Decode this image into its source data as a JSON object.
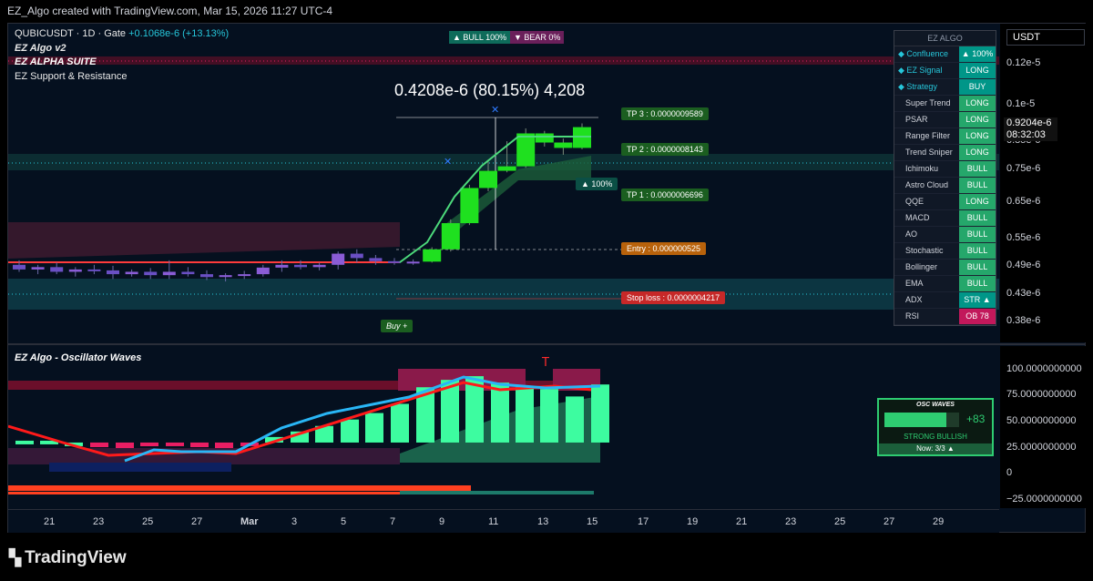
{
  "header": {
    "title": "EZ_Algo created with TradingView.com, Mar 15, 2026 11:27 UTC-4"
  },
  "symbol": {
    "name": "QUBICUSDT · 1D · Gate",
    "change": "+0.1068e-6 (+13.13%)"
  },
  "indicators": {
    "ind1": "EZ Algo v2",
    "ind2": "EZ ALPHA SUITE",
    "ind3": "EZ Support & Resistance",
    "osc_title": "EZ Algo - Oscillator Waves"
  },
  "badges": {
    "bull": "▲ BULL  100%",
    "bear": "▼ BEAR  0%"
  },
  "move_label": "0.4208e-6 (80.15%) 4,208",
  "targets": {
    "tp3": "TP 3 : 0.0000009589",
    "tp2": "TP 2 : 0.0000008143",
    "tp1": "TP 1 : 0.0000006696",
    "entry": "Entry : 0.000000525",
    "stop": "Stop loss : 0.0000004217",
    "pct": "▲ 100%",
    "buy": "Buy +",
    "t_marker": "T"
  },
  "table": {
    "title": "EZ ALGO",
    "rows": [
      {
        "k": "◆ Confluence",
        "v": "▲ 100%",
        "kind": "t",
        "g": true
      },
      {
        "k": "◆ EZ Signal",
        "v": "LONG",
        "kind": "t",
        "g": true
      },
      {
        "k": "◆ Strategy",
        "v": "BUY",
        "kind": "t",
        "g": true
      },
      {
        "k": "Super Trend",
        "v": "LONG",
        "kind": "g"
      },
      {
        "k": "PSAR",
        "v": "LONG",
        "kind": "g"
      },
      {
        "k": "Range Filter",
        "v": "LONG",
        "kind": "g"
      },
      {
        "k": "Trend Sniper",
        "v": "LONG",
        "kind": "g"
      },
      {
        "k": "Ichimoku",
        "v": "BULL",
        "kind": "g"
      },
      {
        "k": "Astro Cloud",
        "v": "BULL",
        "kind": "g"
      },
      {
        "k": "QQE",
        "v": "LONG",
        "kind": "g"
      },
      {
        "k": "MACD",
        "v": "BULL",
        "kind": "g"
      },
      {
        "k": "AO",
        "v": "BULL",
        "kind": "g"
      },
      {
        "k": "Stochastic",
        "v": "BULL",
        "kind": "g"
      },
      {
        "k": "Bollinger",
        "v": "BULL",
        "kind": "g"
      },
      {
        "k": "EMA",
        "v": "BULL",
        "kind": "g"
      },
      {
        "k": "ADX",
        "v": "STR ▲",
        "kind": "t"
      },
      {
        "k": "RSI",
        "v": "OB 78",
        "kind": "p"
      }
    ]
  },
  "price_axis": {
    "currency": "USDT",
    "labels": [
      "0.12e-5",
      "0.1e-5",
      "0.85e-6",
      "0.75e-6",
      "0.65e-6",
      "0.55e-6",
      "0.49e-6",
      "0.43e-6",
      "0.38e-6"
    ],
    "last_price": "0.9204e-6",
    "countdown": "08:32:03"
  },
  "osc_axis": {
    "labels": [
      "100.0000000000",
      "75.0000000000",
      "50.0000000000",
      "25.0000000000",
      "0",
      "−25.0000000000"
    ]
  },
  "x_axis": {
    "labels": [
      "21",
      "23",
      "25",
      "27",
      "Mar",
      "3",
      "5",
      "7",
      "9",
      "11",
      "13",
      "15",
      "17",
      "19",
      "21",
      "23",
      "25",
      "27",
      "29"
    ]
  },
  "osc_panel": {
    "title": "OSC WAVES",
    "value": "+83",
    "state": "STRONG BULLISH",
    "now": "Now: 3/3 ▲",
    "level": 0.83
  },
  "brand": "TradingView",
  "candles": [
    {
      "o": 0.49,
      "h": 0.5,
      "l": 0.475,
      "c": 0.48
    },
    {
      "o": 0.48,
      "h": 0.49,
      "l": 0.47,
      "c": 0.485
    },
    {
      "o": 0.485,
      "h": 0.495,
      "l": 0.47,
      "c": 0.475
    },
    {
      "o": 0.475,
      "h": 0.485,
      "l": 0.465,
      "c": 0.48
    },
    {
      "o": 0.48,
      "h": 0.49,
      "l": 0.47,
      "c": 0.478
    },
    {
      "o": 0.478,
      "h": 0.488,
      "l": 0.46,
      "c": 0.47
    },
    {
      "o": 0.47,
      "h": 0.48,
      "l": 0.465,
      "c": 0.475
    },
    {
      "o": 0.475,
      "h": 0.483,
      "l": 0.46,
      "c": 0.468
    },
    {
      "o": 0.468,
      "h": 0.5,
      "l": 0.46,
      "c": 0.475
    },
    {
      "o": 0.475,
      "h": 0.485,
      "l": 0.465,
      "c": 0.47
    },
    {
      "o": 0.47,
      "h": 0.478,
      "l": 0.458,
      "c": 0.464
    },
    {
      "o": 0.464,
      "h": 0.472,
      "l": 0.455,
      "c": 0.468
    },
    {
      "o": 0.468,
      "h": 0.477,
      "l": 0.46,
      "c": 0.47
    },
    {
      "o": 0.47,
      "h": 0.49,
      "l": 0.465,
      "c": 0.484
    },
    {
      "o": 0.484,
      "h": 0.5,
      "l": 0.475,
      "c": 0.49
    },
    {
      "o": 0.49,
      "h": 0.5,
      "l": 0.48,
      "c": 0.485
    },
    {
      "o": 0.485,
      "h": 0.495,
      "l": 0.478,
      "c": 0.49
    },
    {
      "o": 0.49,
      "h": 0.52,
      "l": 0.48,
      "c": 0.515
    },
    {
      "o": 0.515,
      "h": 0.525,
      "l": 0.495,
      "c": 0.505
    },
    {
      "o": 0.505,
      "h": 0.512,
      "l": 0.49,
      "c": 0.498
    },
    {
      "o": 0.498,
      "h": 0.505,
      "l": 0.49,
      "c": 0.495
    },
    {
      "o": 0.495,
      "h": 0.502,
      "l": 0.49,
      "c": 0.497
    },
    {
      "o": 0.497,
      "h": 0.53,
      "l": 0.495,
      "c": 0.525
    },
    {
      "o": 0.525,
      "h": 0.6,
      "l": 0.52,
      "c": 0.59
    },
    {
      "o": 0.59,
      "h": 0.7,
      "l": 0.585,
      "c": 0.69
    },
    {
      "o": 0.69,
      "h": 0.78,
      "l": 0.68,
      "c": 0.745
    },
    {
      "o": 0.745,
      "h": 0.85,
      "l": 0.74,
      "c": 0.76
    },
    {
      "o": 0.76,
      "h": 0.9,
      "l": 0.755,
      "c": 0.88
    },
    {
      "o": 0.88,
      "h": 0.89,
      "l": 0.83,
      "c": 0.845
    },
    {
      "o": 0.845,
      "h": 0.86,
      "l": 0.8,
      "c": 0.825
    },
    {
      "o": 0.825,
      "h": 0.92,
      "l": 0.82,
      "c": 0.905
    }
  ]
}
